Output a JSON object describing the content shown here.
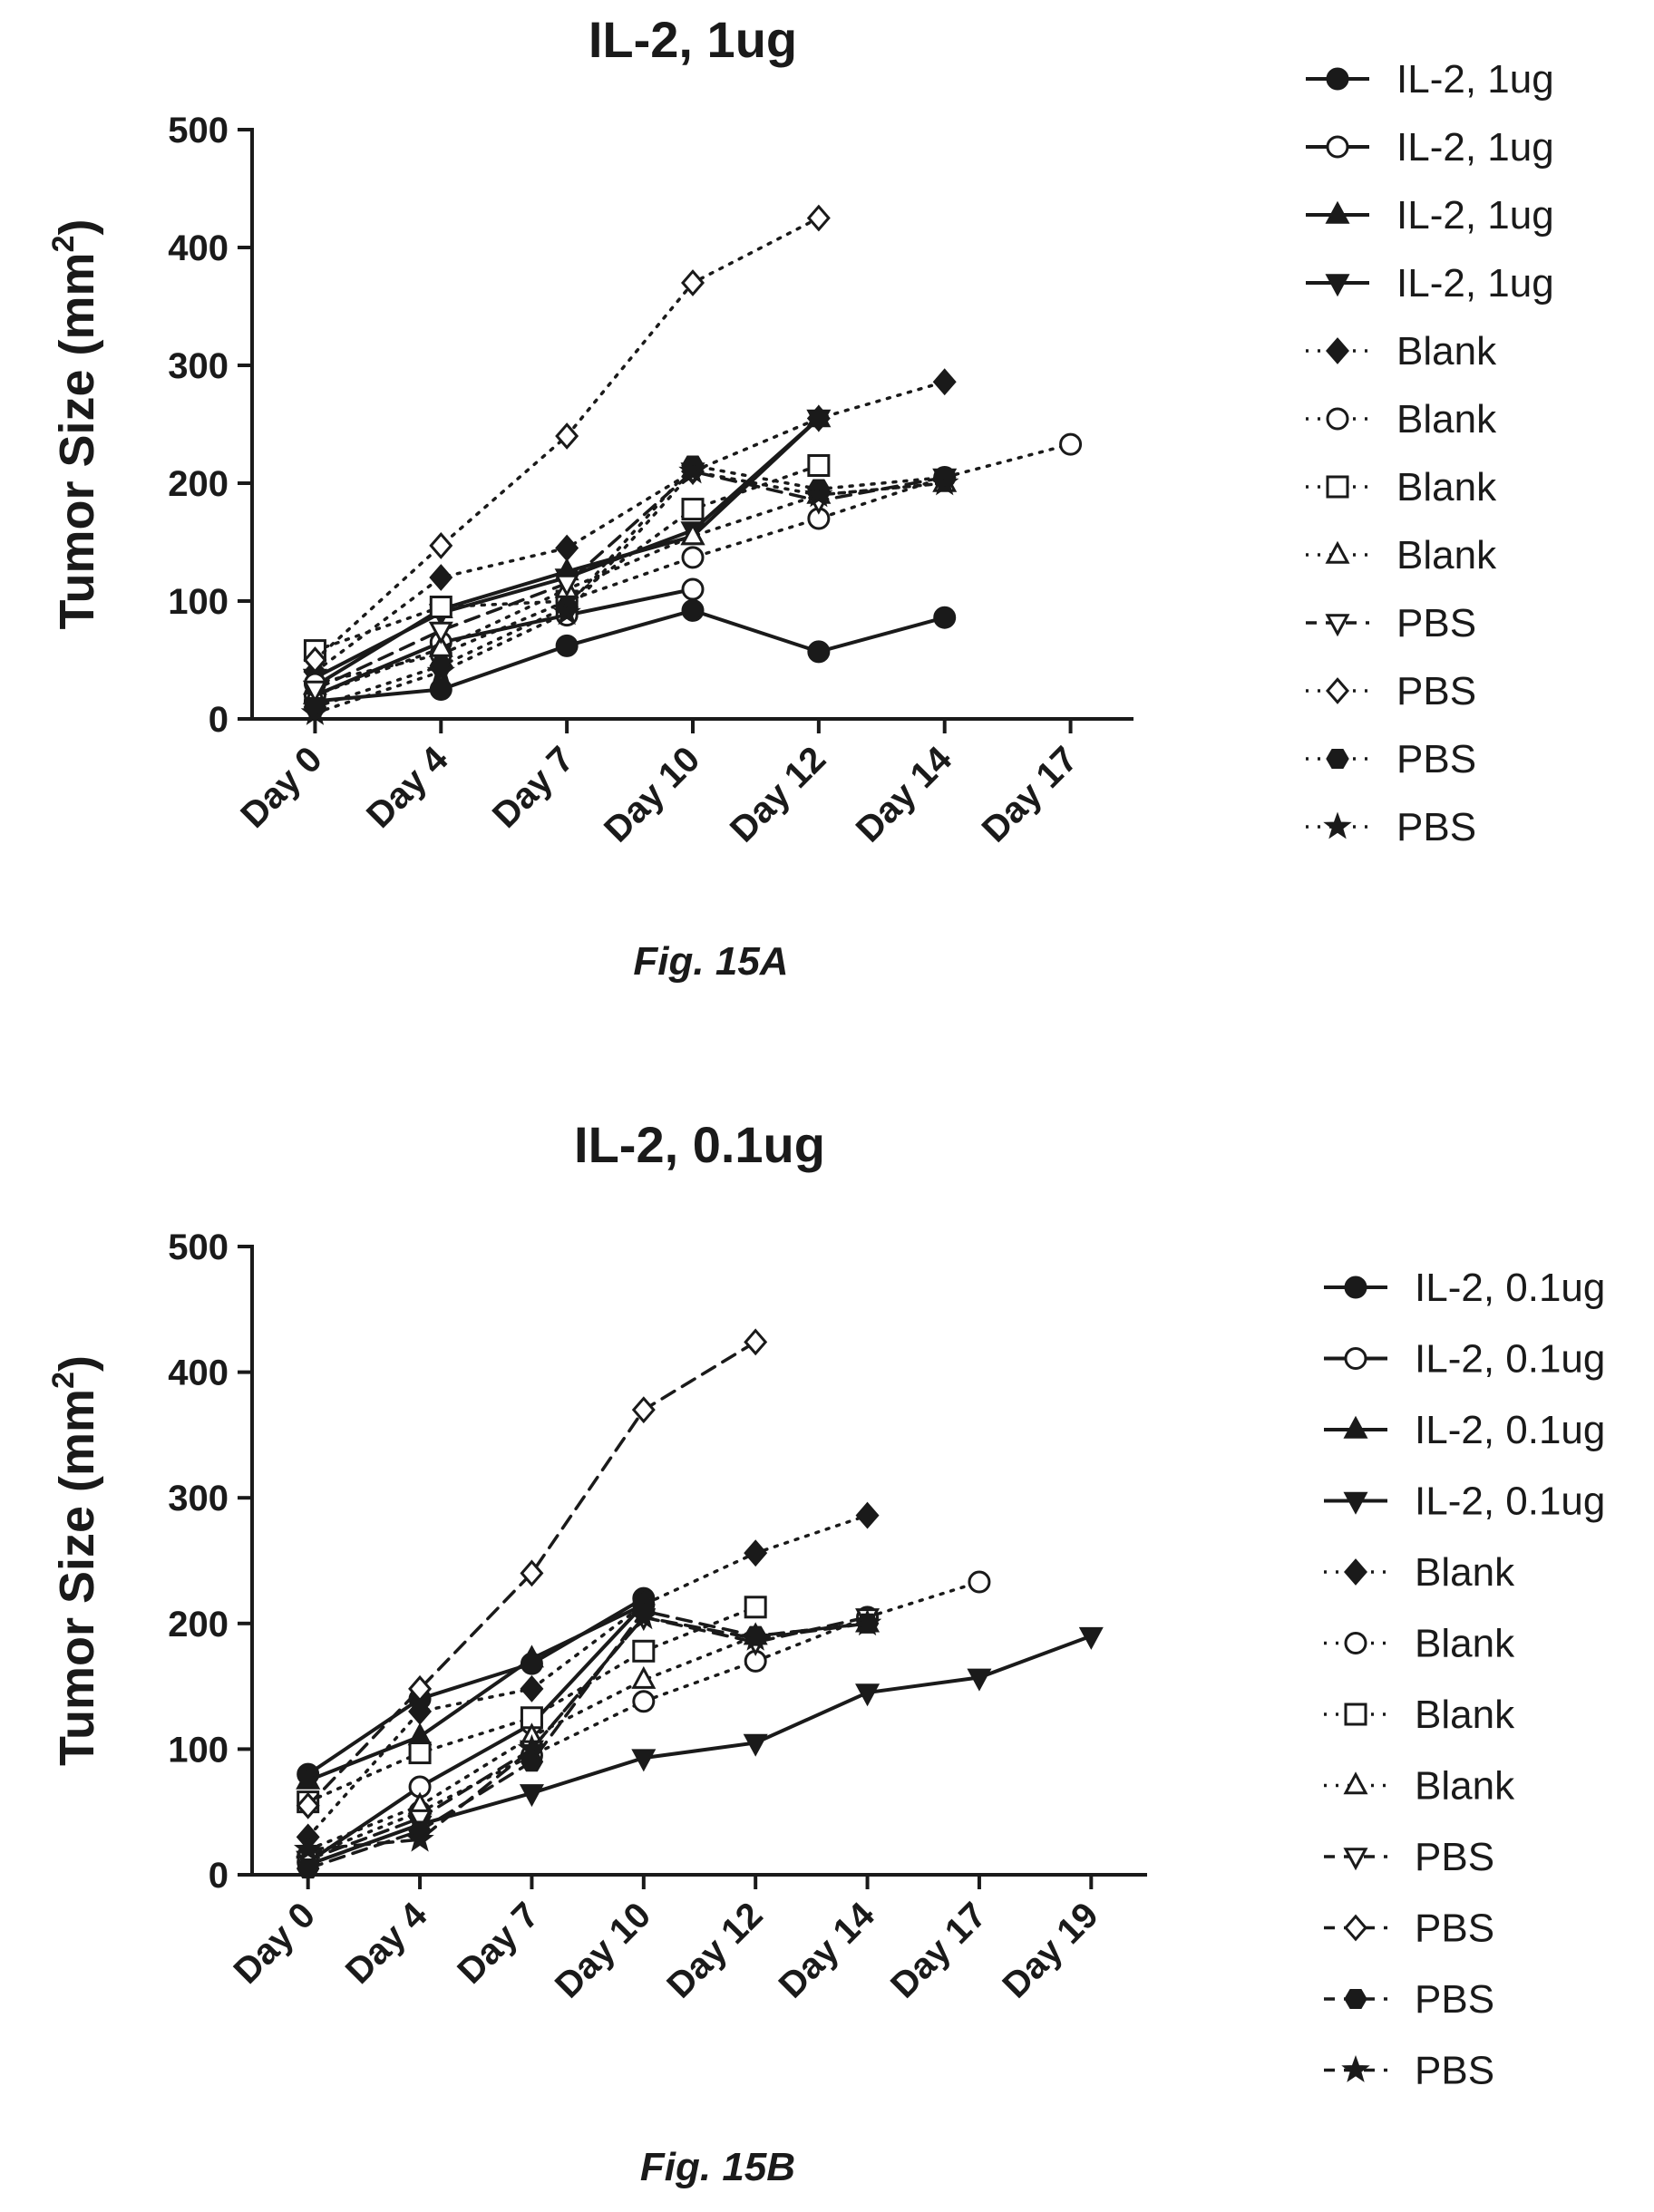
{
  "chart_data": [
    {
      "type": "line",
      "title": "IL-2, 1ug",
      "ylabel": "Tumor Size (mm",
      "ylabel_sup": "2",
      "ylabel_close": ")",
      "caption": "Fig. 15A",
      "categories": [
        "Day 0",
        "Day 4",
        "Day 7",
        "Day 10",
        "Day 12",
        "Day 14",
        "Day 17"
      ],
      "ylim": [
        0,
        500
      ],
      "yticks": [
        "0",
        "100",
        "200",
        "300",
        "400",
        "500"
      ],
      "grid": false,
      "legend_position": "right",
      "series": [
        {
          "name": "IL-2, 1ug",
          "marker": "circle-filled",
          "line": "solid",
          "values": [
            15,
            25,
            62,
            92,
            57,
            86,
            null
          ]
        },
        {
          "name": "IL-2, 1ug",
          "marker": "circle-open",
          "line": "solid",
          "values": [
            20,
            65,
            88,
            110,
            null,
            null,
            null
          ]
        },
        {
          "name": "IL-2, 1ug",
          "marker": "triangle-up-filled",
          "line": "solid",
          "values": [
            28,
            93,
            125,
            155,
            255,
            null,
            null
          ]
        },
        {
          "name": "IL-2, 1ug",
          "marker": "triangle-down-filled",
          "line": "solid",
          "values": [
            35,
            90,
            120,
            160,
            255,
            null,
            null
          ]
        },
        {
          "name": "Blank",
          "marker": "diamond-filled",
          "line": "dotted",
          "values": [
            40,
            120,
            145,
            210,
            255,
            286,
            null
          ]
        },
        {
          "name": "Blank",
          "marker": "circle-open",
          "line": "dotted",
          "values": [
            30,
            55,
            100,
            137,
            170,
            205,
            233
          ]
        },
        {
          "name": "Blank",
          "marker": "square-open",
          "line": "dotted",
          "values": [
            58,
            95,
            100,
            178,
            215,
            null,
            null
          ]
        },
        {
          "name": "Blank",
          "marker": "triangle-up-open",
          "line": "dotted",
          "values": [
            20,
            60,
            110,
            155,
            190,
            200,
            null
          ]
        },
        {
          "name": "PBS",
          "marker": "triangle-down-open",
          "line": "dashed",
          "values": [
            25,
            75,
            115,
            210,
            185,
            205,
            null
          ]
        },
        {
          "name": "PBS",
          "marker": "diamond-open",
          "line": "dotted",
          "values": [
            50,
            147,
            240,
            370,
            425,
            null,
            null
          ]
        },
        {
          "name": "PBS",
          "marker": "hexagon-filled",
          "line": "dotted",
          "values": [
            10,
            45,
            95,
            215,
            195,
            205,
            null
          ]
        },
        {
          "name": "PBS",
          "marker": "star-filled",
          "line": "dotted",
          "values": [
            5,
            40,
            90,
            210,
            190,
            200,
            null
          ]
        }
      ]
    },
    {
      "type": "line",
      "title": "IL-2, 0.1ug",
      "ylabel": "Tumor Size (mm",
      "ylabel_sup": "2",
      "ylabel_close": ")",
      "caption": "Fig. 15B",
      "categories": [
        "Day 0",
        "Day 4",
        "Day 7",
        "Day 10",
        "Day 12",
        "Day 14",
        "Day 17",
        "Day 19"
      ],
      "ylim": [
        0,
        500
      ],
      "yticks": [
        "0",
        "100",
        "200",
        "300",
        "400",
        "500"
      ],
      "grid": false,
      "legend_position": "right",
      "series": [
        {
          "name": "IL-2, 0.1ug",
          "marker": "circle-filled",
          "line": "solid",
          "values": [
            80,
            140,
            168,
            220,
            null,
            null,
            null,
            null
          ]
        },
        {
          "name": "IL-2, 0.1ug",
          "marker": "circle-open",
          "line": "solid",
          "values": [
            10,
            70,
            120,
            215,
            null,
            null,
            null,
            null
          ]
        },
        {
          "name": "IL-2, 0.1ug",
          "marker": "triangle-up-filled",
          "line": "solid",
          "values": [
            75,
            110,
            172,
            215,
            null,
            null,
            null,
            null
          ]
        },
        {
          "name": "IL-2, 0.1ug",
          "marker": "triangle-down-filled",
          "line": "solid",
          "values": [
            8,
            40,
            65,
            93,
            105,
            145,
            157,
            190
          ]
        },
        {
          "name": "Blank",
          "marker": "diamond-filled",
          "line": "dotted",
          "values": [
            30,
            130,
            148,
            215,
            256,
            286,
            null,
            null
          ]
        },
        {
          "name": "Blank",
          "marker": "circle-open",
          "line": "dotted",
          "values": [
            15,
            50,
            95,
            138,
            170,
            205,
            233,
            null
          ]
        },
        {
          "name": "Blank",
          "marker": "square-open",
          "line": "dotted",
          "values": [
            58,
            97,
            125,
            178,
            213,
            null,
            null,
            null
          ]
        },
        {
          "name": "Blank",
          "marker": "triangle-up-open",
          "line": "dotted",
          "values": [
            20,
            55,
            110,
            155,
            190,
            200,
            null,
            null
          ]
        },
        {
          "name": "PBS",
          "marker": "triangle-down-open",
          "line": "dashed",
          "values": [
            12,
            45,
            100,
            205,
            185,
            205,
            null,
            null
          ]
        },
        {
          "name": "PBS",
          "marker": "diamond-open",
          "line": "dashed",
          "values": [
            55,
            148,
            240,
            370,
            424,
            null,
            null,
            null
          ]
        },
        {
          "name": "PBS",
          "marker": "hexagon-filled",
          "line": "dashed",
          "values": [
            5,
            35,
            90,
            210,
            190,
            200,
            null,
            null
          ]
        },
        {
          "name": "PBS",
          "marker": "star-filled",
          "line": "dashed",
          "values": [
            20,
            28,
            100,
            205,
            188,
            200,
            null,
            null
          ]
        }
      ]
    }
  ]
}
